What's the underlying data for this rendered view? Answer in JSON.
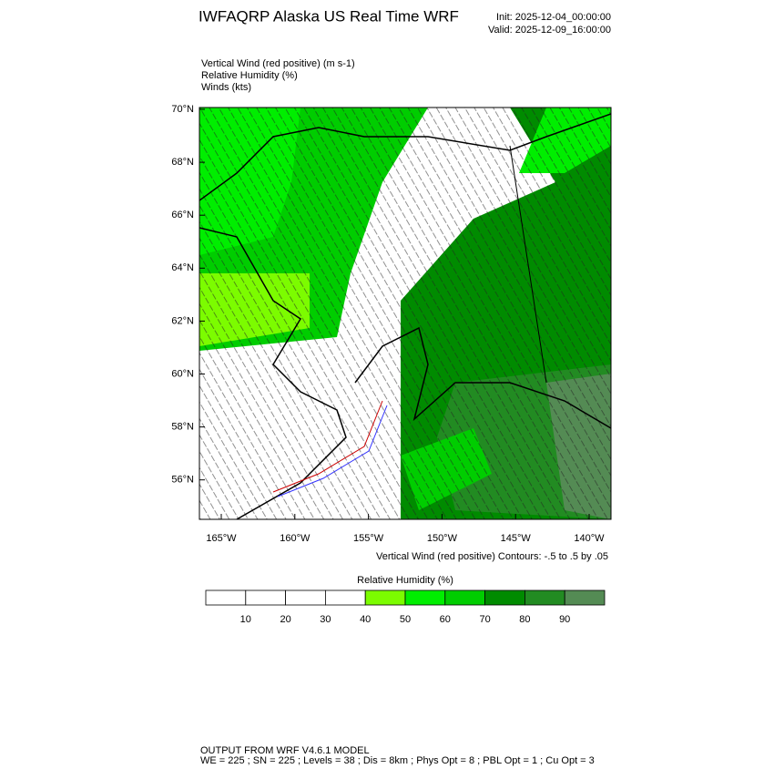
{
  "header": {
    "title": "IWFAQRP Alaska US Real Time WRF",
    "init": "Init: 2025-12-04_00:00:00",
    "valid": "Valid: 2025-12-09_16:00:00"
  },
  "fields": [
    "Vertical Wind (red positive)   (m s-1)",
    "Relative Humidity   (%)",
    "Winds   (kts)"
  ],
  "map": {
    "lat_labels": [
      "70°N",
      "68°N",
      "66°N",
      "64°N",
      "62°N",
      "60°N",
      "58°N",
      "56°N"
    ],
    "lon_labels": [
      "165°W",
      "160°W",
      "155°W",
      "150°W",
      "145°W",
      "140°W"
    ],
    "contour_note": "Vertical Wind (red positive) Contours: -.5 to .5 by .05"
  },
  "colorbar": {
    "title": "Relative Humidity  (%)",
    "colors": [
      "#ffffff",
      "#ffffff",
      "#ffffff",
      "#ffffff",
      "#7cfc00",
      "#00ee00",
      "#00cd00",
      "#008b00",
      "#228b22",
      "#548b54"
    ],
    "ticks": [
      10,
      20,
      30,
      40,
      50,
      60,
      70,
      80,
      90
    ]
  },
  "footer": {
    "line1": "OUTPUT FROM WRF V4.6.1 MODEL",
    "line2": "WE = 225 ; SN = 225 ; Levels = 38 ; Dis = 8km ; Phys Opt = 8 ; PBL Opt = 1 ; Cu Opt = 3"
  }
}
